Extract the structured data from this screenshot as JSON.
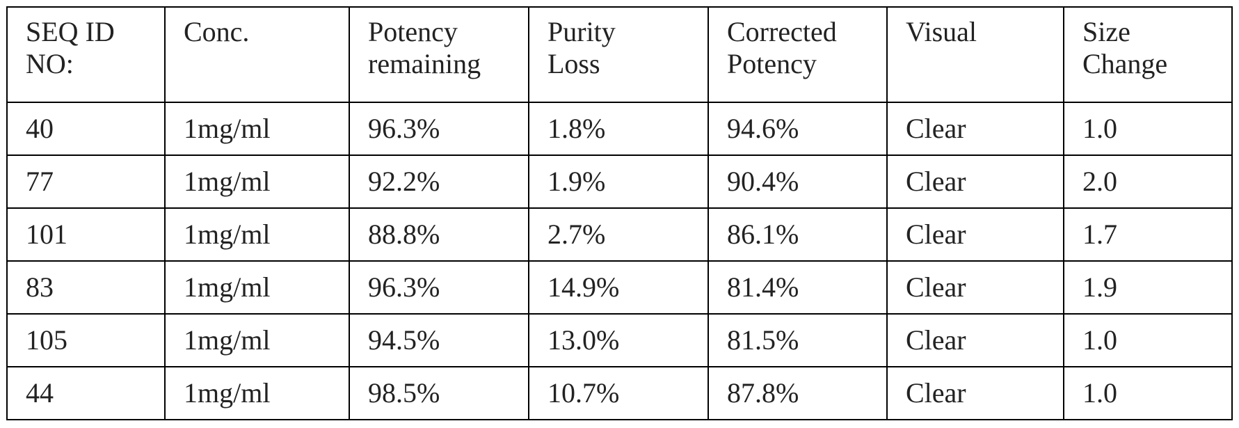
{
  "table": {
    "header": [
      [
        "SEQ ID",
        "NO:"
      ],
      [
        "Conc."
      ],
      [
        "Potency",
        "remaining"
      ],
      [
        "Purity",
        "Loss"
      ],
      [
        "Corrected",
        "Potency"
      ],
      [
        "Visual"
      ],
      [
        "Size",
        "Change"
      ]
    ],
    "rows": [
      [
        "40",
        "1mg/ml",
        "96.3%",
        "1.8%",
        "94.6%",
        "Clear",
        "1.0"
      ],
      [
        "77",
        "1mg/ml",
        "92.2%",
        "1.9%",
        "90.4%",
        "Clear",
        "2.0"
      ],
      [
        "101",
        "1mg/ml",
        "88.8%",
        "2.7%",
        "86.1%",
        "Clear",
        "1.7"
      ],
      [
        "83",
        "1mg/ml",
        "96.3%",
        "14.9%",
        "81.4%",
        "Clear",
        "1.9"
      ],
      [
        "105",
        "1mg/ml",
        "94.5%",
        "13.0%",
        "81.5%",
        "Clear",
        "1.0"
      ],
      [
        "44",
        "1mg/ml",
        "98.5%",
        "10.7%",
        "87.8%",
        "Clear",
        "1.0"
      ]
    ]
  }
}
